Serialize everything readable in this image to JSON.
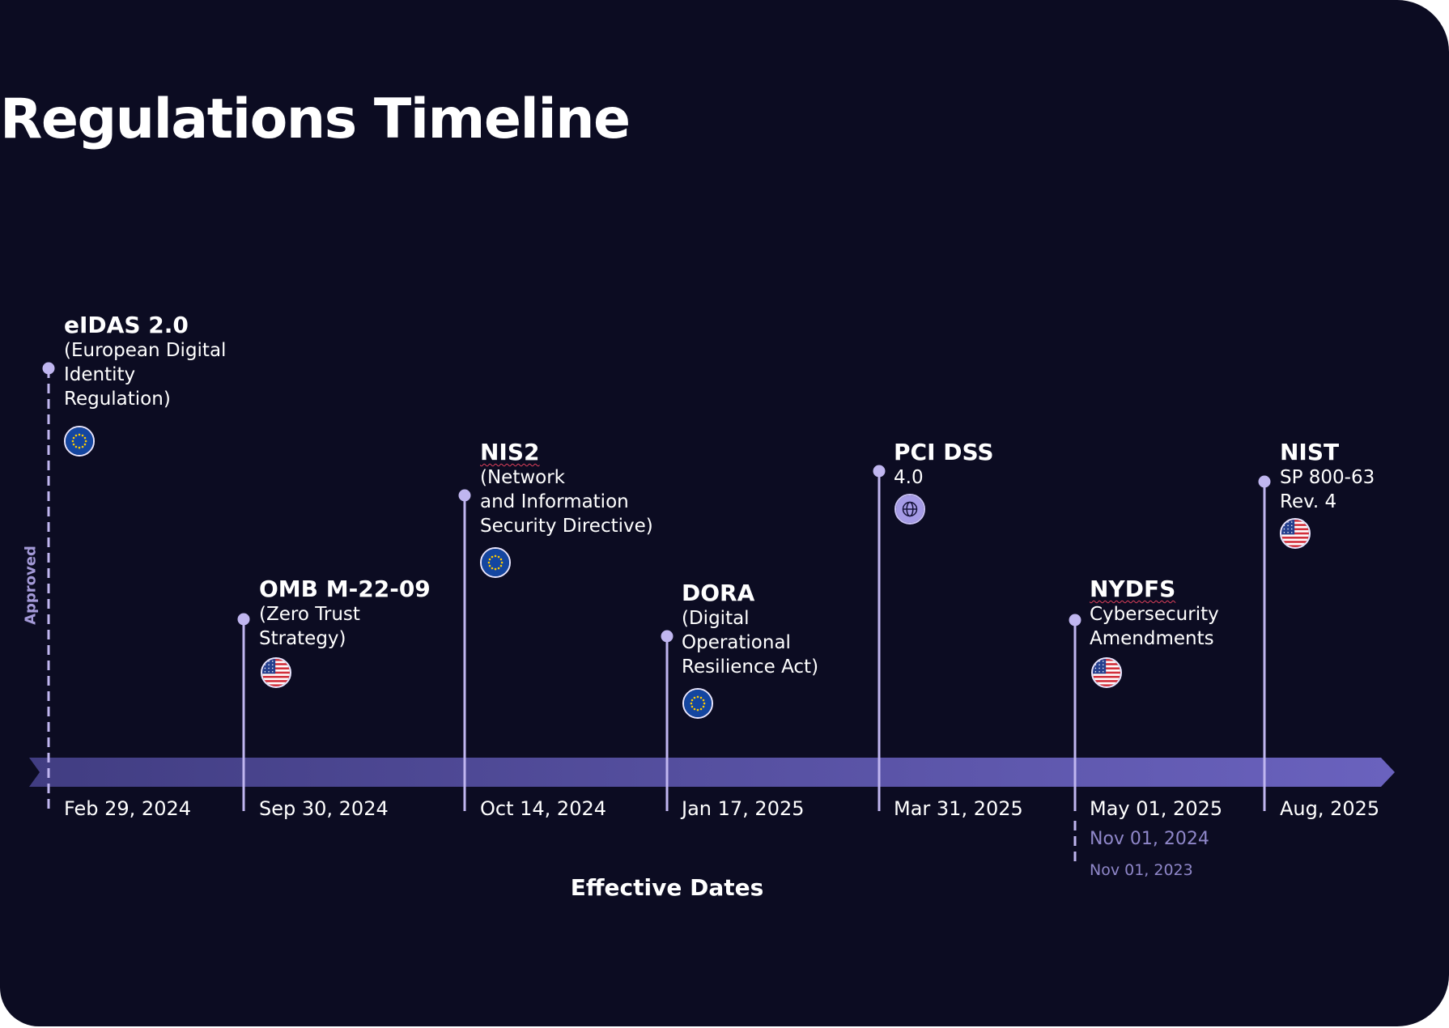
{
  "title": "Regulations Timeline",
  "axis": {
    "approved_label": "Approved",
    "effective_label": "Effective Dates"
  },
  "colors": {
    "background": "#0c0c22",
    "arrow_start": "#413d82",
    "arrow_end": "#6a62be",
    "marker": "#c0b6f0",
    "secondary_text": "#8f87c9"
  },
  "events": [
    {
      "name": "eIDAS 2.0",
      "description": [
        "(European Digital",
        "Identity",
        "Regulation)"
      ],
      "jurisdiction": "EU",
      "icon": "eu-flag-icon",
      "date": "Feb 29, 2024",
      "marker": "dashed"
    },
    {
      "name": "OMB M-22-09",
      "description": [
        "(Zero Trust",
        "Strategy)"
      ],
      "jurisdiction": "US",
      "icon": "us-flag-icon",
      "date": "Sep 30, 2024",
      "marker": "solid"
    },
    {
      "name": "NIS2",
      "description": [
        "(Network",
        "and Information",
        "Security Directive)"
      ],
      "jurisdiction": "EU",
      "icon": "eu-flag-icon",
      "date": "Oct 14, 2024",
      "marker": "solid"
    },
    {
      "name": "DORA",
      "description": [
        "(Digital",
        "Operational",
        "Resilience Act)"
      ],
      "jurisdiction": "EU",
      "icon": "eu-flag-icon",
      "date": "Jan 17, 2025",
      "marker": "solid"
    },
    {
      "name": "PCI DSS",
      "description": [
        "4.0"
      ],
      "jurisdiction": "Global",
      "icon": "globe-icon",
      "date": "Mar 31, 2025",
      "marker": "solid"
    },
    {
      "name": "NYDFS",
      "description": [
        "Cybersecurity",
        "Amendments"
      ],
      "jurisdiction": "US",
      "icon": "us-flag-icon",
      "date": "May 01, 2025",
      "earlier_dates": [
        "Nov 01, 2024",
        "Nov 01, 2023"
      ],
      "marker": "solid"
    },
    {
      "name": "NIST",
      "description": [
        "SP 800-63",
        "Rev. 4"
      ],
      "jurisdiction": "US",
      "icon": "us-flag-icon",
      "date": "Aug, 2025",
      "marker": "solid"
    }
  ]
}
